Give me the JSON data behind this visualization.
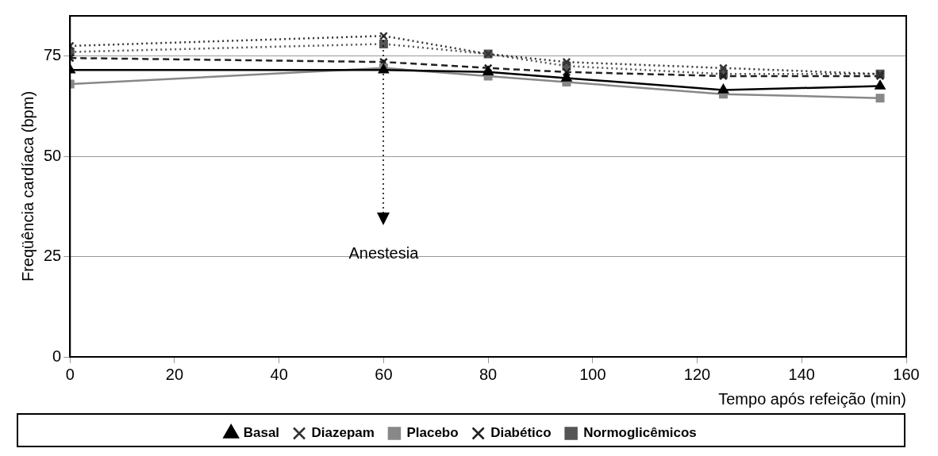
{
  "chart_data": {
    "type": "line",
    "xlabel": "Tempo após refeição (min)",
    "ylabel": "Freqüência cardíaca (bpm)",
    "x": [
      0,
      60,
      80,
      95,
      125,
      155
    ],
    "series": [
      {
        "name": "Basal",
        "color": "#000000",
        "values": [
          71.5,
          71.5,
          71,
          69.5,
          66.5,
          67.5
        ],
        "line_style": "solid",
        "marker": "triangle"
      },
      {
        "name": "Diazepam",
        "color": "#333333",
        "values": [
          77.5,
          80,
          75.5,
          73.5,
          72,
          70.5
        ],
        "line_style": "dotted",
        "marker": "cross"
      },
      {
        "name": "Placebo",
        "color": "#888888",
        "values": [
          68,
          72,
          70,
          68.5,
          65.5,
          64.5
        ],
        "line_style": "solid",
        "marker": "square"
      },
      {
        "name": "Diabético",
        "color": "#222222",
        "values": [
          74.5,
          73.5,
          72,
          71,
          70,
          70
        ],
        "line_style": "dashed",
        "marker": "cross"
      },
      {
        "name": "Normoglicêmicos",
        "color": "#555555",
        "values": [
          76,
          78,
          75.5,
          72.5,
          70.5,
          70.5
        ],
        "line_style": "dotted",
        "marker": "square"
      }
    ],
    "xlim": [
      0,
      160
    ],
    "xticks": [
      0,
      20,
      40,
      60,
      80,
      100,
      120,
      140,
      160
    ],
    "ylim": [
      0,
      85
    ],
    "yticks": [
      0,
      25,
      50,
      75
    ],
    "grid": "y",
    "legend": "bottom",
    "ref_lines": [
      {
        "axis": "x",
        "value": 60,
        "label": "Anestesia",
        "line_style": "dotted"
      }
    ]
  }
}
